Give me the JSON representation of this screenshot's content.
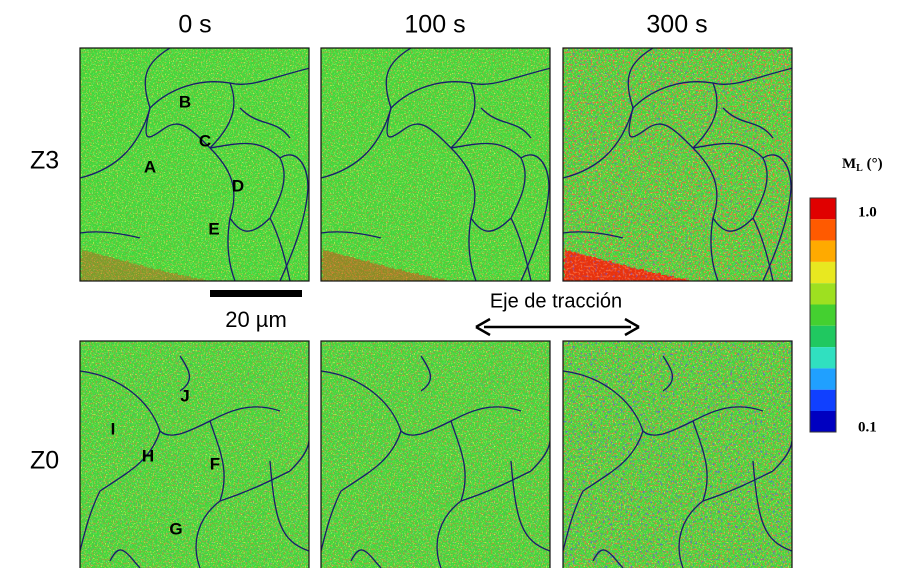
{
  "figure": {
    "columns": [
      "0 s",
      "100 s",
      "300 s"
    ],
    "rows": [
      "Z3",
      "Z0"
    ],
    "grain_labels": [
      "A",
      "B",
      "C",
      "D",
      "E",
      "F",
      "G",
      "H",
      "I",
      "J"
    ],
    "scale_bar": {
      "label": "20 µm"
    },
    "axis_label": "Eje de tracción",
    "colorbar": {
      "title": "M",
      "title_subscript": "L",
      "title_suffix": " (°)",
      "top_label": "1.0",
      "bottom_label": "0.1"
    }
  }
}
